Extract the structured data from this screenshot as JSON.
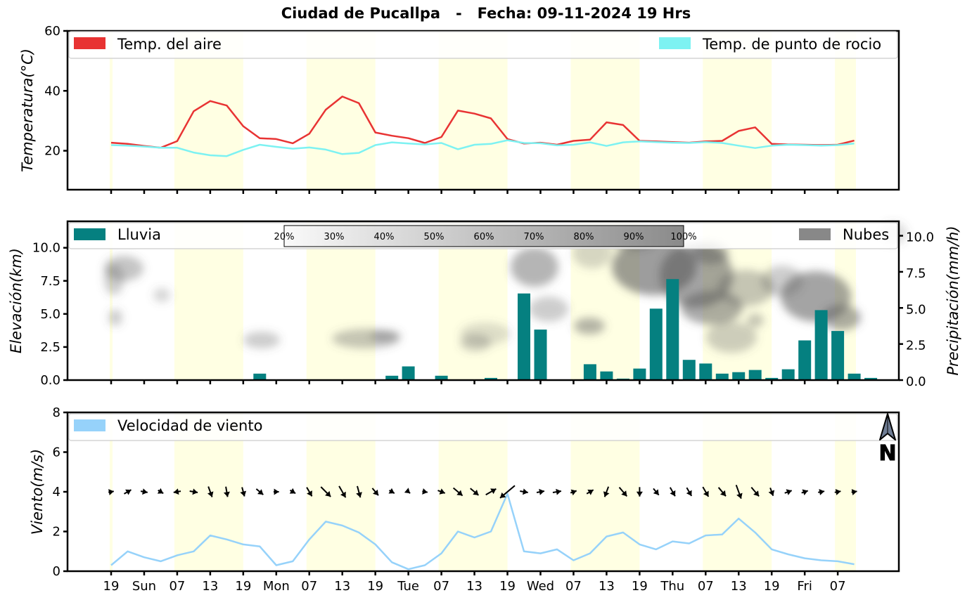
{
  "title": "Ciudad de Pucallpa   -   Fecha: 09-11-2024 19 Hrs",
  "x_tick_labels": [
    "19",
    "Sun",
    "07",
    "13",
    "19",
    "Mon",
    "07",
    "13",
    "19",
    "Tue",
    "07",
    "13",
    "19",
    "Wed",
    "07",
    "13",
    "19",
    "Thu",
    "07",
    "13",
    "19",
    "Fri",
    "07"
  ],
  "colors": {
    "temp_air": "#e83333",
    "dew_point": "#7df2f2",
    "rain": "#058080",
    "clouds": "#888888",
    "wind": "#96d2fa",
    "daylight": "#ffffe3"
  },
  "compass_label": "N",
  "chart_data": [
    {
      "type": "line",
      "ylabel": "Temperatura(°C)",
      "ylim": [
        7,
        60
      ],
      "yticks": [
        20,
        40,
        60
      ],
      "legend": {
        "placement": "top",
        "entries": [
          "Temp. del aire",
          "Temp. de punto de rocio"
        ]
      },
      "series": [
        {
          "name": "Temp. del aire",
          "values": [
            22.7,
            22.3,
            21.6,
            21.0,
            23.2,
            33.2,
            36.6,
            35.1,
            28.2,
            24.2,
            23.9,
            22.5,
            25.7,
            33.7,
            38.1,
            35.9,
            26.1,
            25.0,
            24.2,
            22.6,
            24.6,
            33.4,
            32.4,
            30.8,
            23.9,
            22.4,
            22.7,
            22.0,
            23.3,
            23.7,
            29.5,
            28.6,
            23.3,
            23.1,
            22.9,
            22.7,
            23.1,
            23.3,
            26.6,
            27.8,
            22.3,
            22.1,
            22.0,
            21.9,
            22.0,
            23.4
          ]
        },
        {
          "name": "Temp. de punto de rocio",
          "values": [
            21.9,
            21.7,
            21.4,
            21.0,
            21.0,
            19.4,
            18.5,
            18.2,
            20.3,
            22.0,
            21.3,
            20.7,
            21.1,
            20.4,
            18.9,
            19.3,
            21.9,
            22.8,
            22.4,
            22.1,
            22.6,
            20.5,
            22.0,
            22.3,
            23.5,
            22.6,
            22.5,
            21.8,
            22.0,
            22.8,
            21.6,
            22.8,
            23.1,
            22.9,
            22.7,
            22.6,
            22.9,
            22.6,
            21.7,
            20.9,
            21.7,
            22.0,
            21.9,
            21.7,
            21.9,
            22.4
          ]
        }
      ]
    },
    {
      "type": "bar",
      "ylabel": "Elevación(km)",
      "ylim": [
        0,
        12
      ],
      "yticks": [
        "0.0",
        "2.5",
        "5.0",
        "7.5",
        "10.0"
      ],
      "y2label": "Precipitación(mm/h)",
      "y2lim": [
        0,
        11
      ],
      "y2ticks": [
        "0.0",
        "2.5",
        "5.0",
        "7.5",
        "10.0"
      ],
      "legend": {
        "placement": "top",
        "entries": [
          "Lluvia",
          "Nubes"
        ]
      },
      "colorbar_labels": [
        "20%",
        "30%",
        "40%",
        "50%",
        "60%",
        "70%",
        "80%",
        "90%",
        "100%"
      ],
      "series": [
        {
          "name": "Lluvia",
          "values": [
            0,
            0,
            0,
            0,
            0,
            0,
            0,
            0,
            0,
            0.45,
            0.05,
            0.05,
            0,
            0,
            0,
            0,
            0,
            0.3,
            0.95,
            0.05,
            0.3,
            0.05,
            0,
            0.15,
            0,
            6.0,
            3.5,
            0.05,
            0.05,
            1.1,
            0.6,
            0.1,
            0.8,
            4.95,
            7.0,
            1.4,
            1.15,
            0.45,
            0.55,
            0.7,
            0.15,
            0.75,
            2.75,
            4.85,
            3.4,
            0.45,
            0.15
          ]
        }
      ]
    },
    {
      "type": "line",
      "ylabel": "Viento(m/s)",
      "ylim": [
        0,
        8
      ],
      "yticks": [
        0,
        2,
        4,
        6,
        8
      ],
      "legend": {
        "placement": "top-left",
        "entries": [
          "Velocidad de viento"
        ]
      },
      "series": [
        {
          "name": "Velocidad de viento",
          "values": [
            0.3,
            1.0,
            0.7,
            0.5,
            0.8,
            1.0,
            1.8,
            1.6,
            1.35,
            1.25,
            0.3,
            0.5,
            1.6,
            2.5,
            2.3,
            1.95,
            1.35,
            0.45,
            0.1,
            0.3,
            0.9,
            2.0,
            1.7,
            2.0,
            3.9,
            1.0,
            0.9,
            1.1,
            0.55,
            0.9,
            1.75,
            1.95,
            1.35,
            1.1,
            1.5,
            1.4,
            1.8,
            1.85,
            2.65,
            1.95,
            1.1,
            0.85,
            0.65,
            0.55,
            0.5,
            0.35
          ]
        }
      ]
    }
  ]
}
